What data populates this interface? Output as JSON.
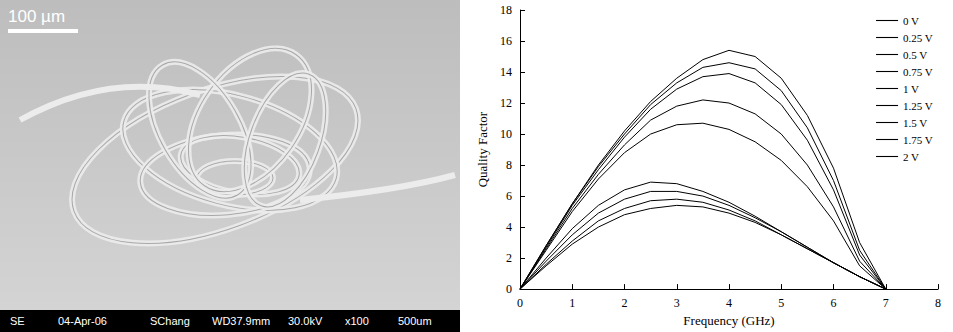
{
  "image": {
    "scale_bar": "100 µm",
    "info_bar": [
      "SE",
      "04-Apr-06",
      "SChang",
      "WD37.9mm",
      "30.0kV",
      "x100",
      "500um"
    ]
  },
  "chart_data": {
    "type": "line",
    "x_label": "Frequency (GHz)",
    "y_label": "Quality Factor",
    "x": [
      0,
      0.5,
      1,
      1.5,
      2,
      2.5,
      3,
      3.5,
      4,
      4.5,
      5,
      5.5,
      6,
      6.5,
      7
    ],
    "xlim": [
      0,
      8
    ],
    "xticks": [
      0,
      1,
      2,
      3,
      4,
      5,
      6,
      7,
      8
    ],
    "ylim": [
      0,
      18
    ],
    "yticks": [
      0,
      2,
      4,
      6,
      8,
      10,
      12,
      14,
      16,
      18
    ],
    "grid": false,
    "legend": "upper right",
    "marker": "none",
    "line_style": "solid",
    "series": [
      {
        "name": "0 V",
        "color": "#000000",
        "values": [
          0,
          2.8,
          5.5,
          8.0,
          10.2,
          12.1,
          13.6,
          14.8,
          15.4,
          15.0,
          13.6,
          11.2,
          7.8,
          3.0,
          0
        ]
      },
      {
        "name": "0.25 V",
        "color": "#000000",
        "values": [
          0,
          2.8,
          5.5,
          7.9,
          10.0,
          11.9,
          13.3,
          14.3,
          14.6,
          14.2,
          12.8,
          10.4,
          7.0,
          2.5,
          0
        ]
      },
      {
        "name": "0.5 V",
        "color": "#000000",
        "values": [
          0,
          2.7,
          5.4,
          7.7,
          9.8,
          11.6,
          12.9,
          13.7,
          13.9,
          13.3,
          11.9,
          9.6,
          6.4,
          2.2,
          0
        ]
      },
      {
        "name": "0.75 V",
        "color": "#000000",
        "values": [
          0,
          2.6,
          5.2,
          7.4,
          9.3,
          10.9,
          11.8,
          12.2,
          12.0,
          11.3,
          10.0,
          8.0,
          5.3,
          1.8,
          0
        ]
      },
      {
        "name": "1 V",
        "color": "#000000",
        "values": [
          0,
          2.5,
          5.0,
          7.1,
          8.8,
          10.0,
          10.6,
          10.7,
          10.3,
          9.5,
          8.3,
          6.6,
          4.4,
          1.5,
          0
        ]
      },
      {
        "name": "1.25 V",
        "color": "#000000",
        "values": [
          0,
          2.0,
          3.9,
          5.4,
          6.4,
          6.9,
          6.8,
          6.3,
          5.6,
          4.7,
          3.7,
          2.7,
          1.7,
          0.8,
          0
        ]
      },
      {
        "name": "1.5 V",
        "color": "#000000",
        "values": [
          0,
          1.8,
          3.5,
          4.9,
          5.8,
          6.3,
          6.3,
          6.0,
          5.4,
          4.6,
          3.7,
          2.7,
          1.7,
          0.8,
          0
        ]
      },
      {
        "name": "1.75 V",
        "color": "#000000",
        "values": [
          0,
          1.6,
          3.1,
          4.4,
          5.2,
          5.7,
          5.8,
          5.6,
          5.1,
          4.4,
          3.5,
          2.6,
          1.7,
          0.8,
          0
        ]
      },
      {
        "name": "2 V",
        "color": "#000000",
        "values": [
          0,
          1.5,
          2.9,
          4.0,
          4.8,
          5.2,
          5.4,
          5.3,
          4.9,
          4.3,
          3.5,
          2.6,
          1.7,
          0.8,
          0
        ]
      }
    ]
  }
}
